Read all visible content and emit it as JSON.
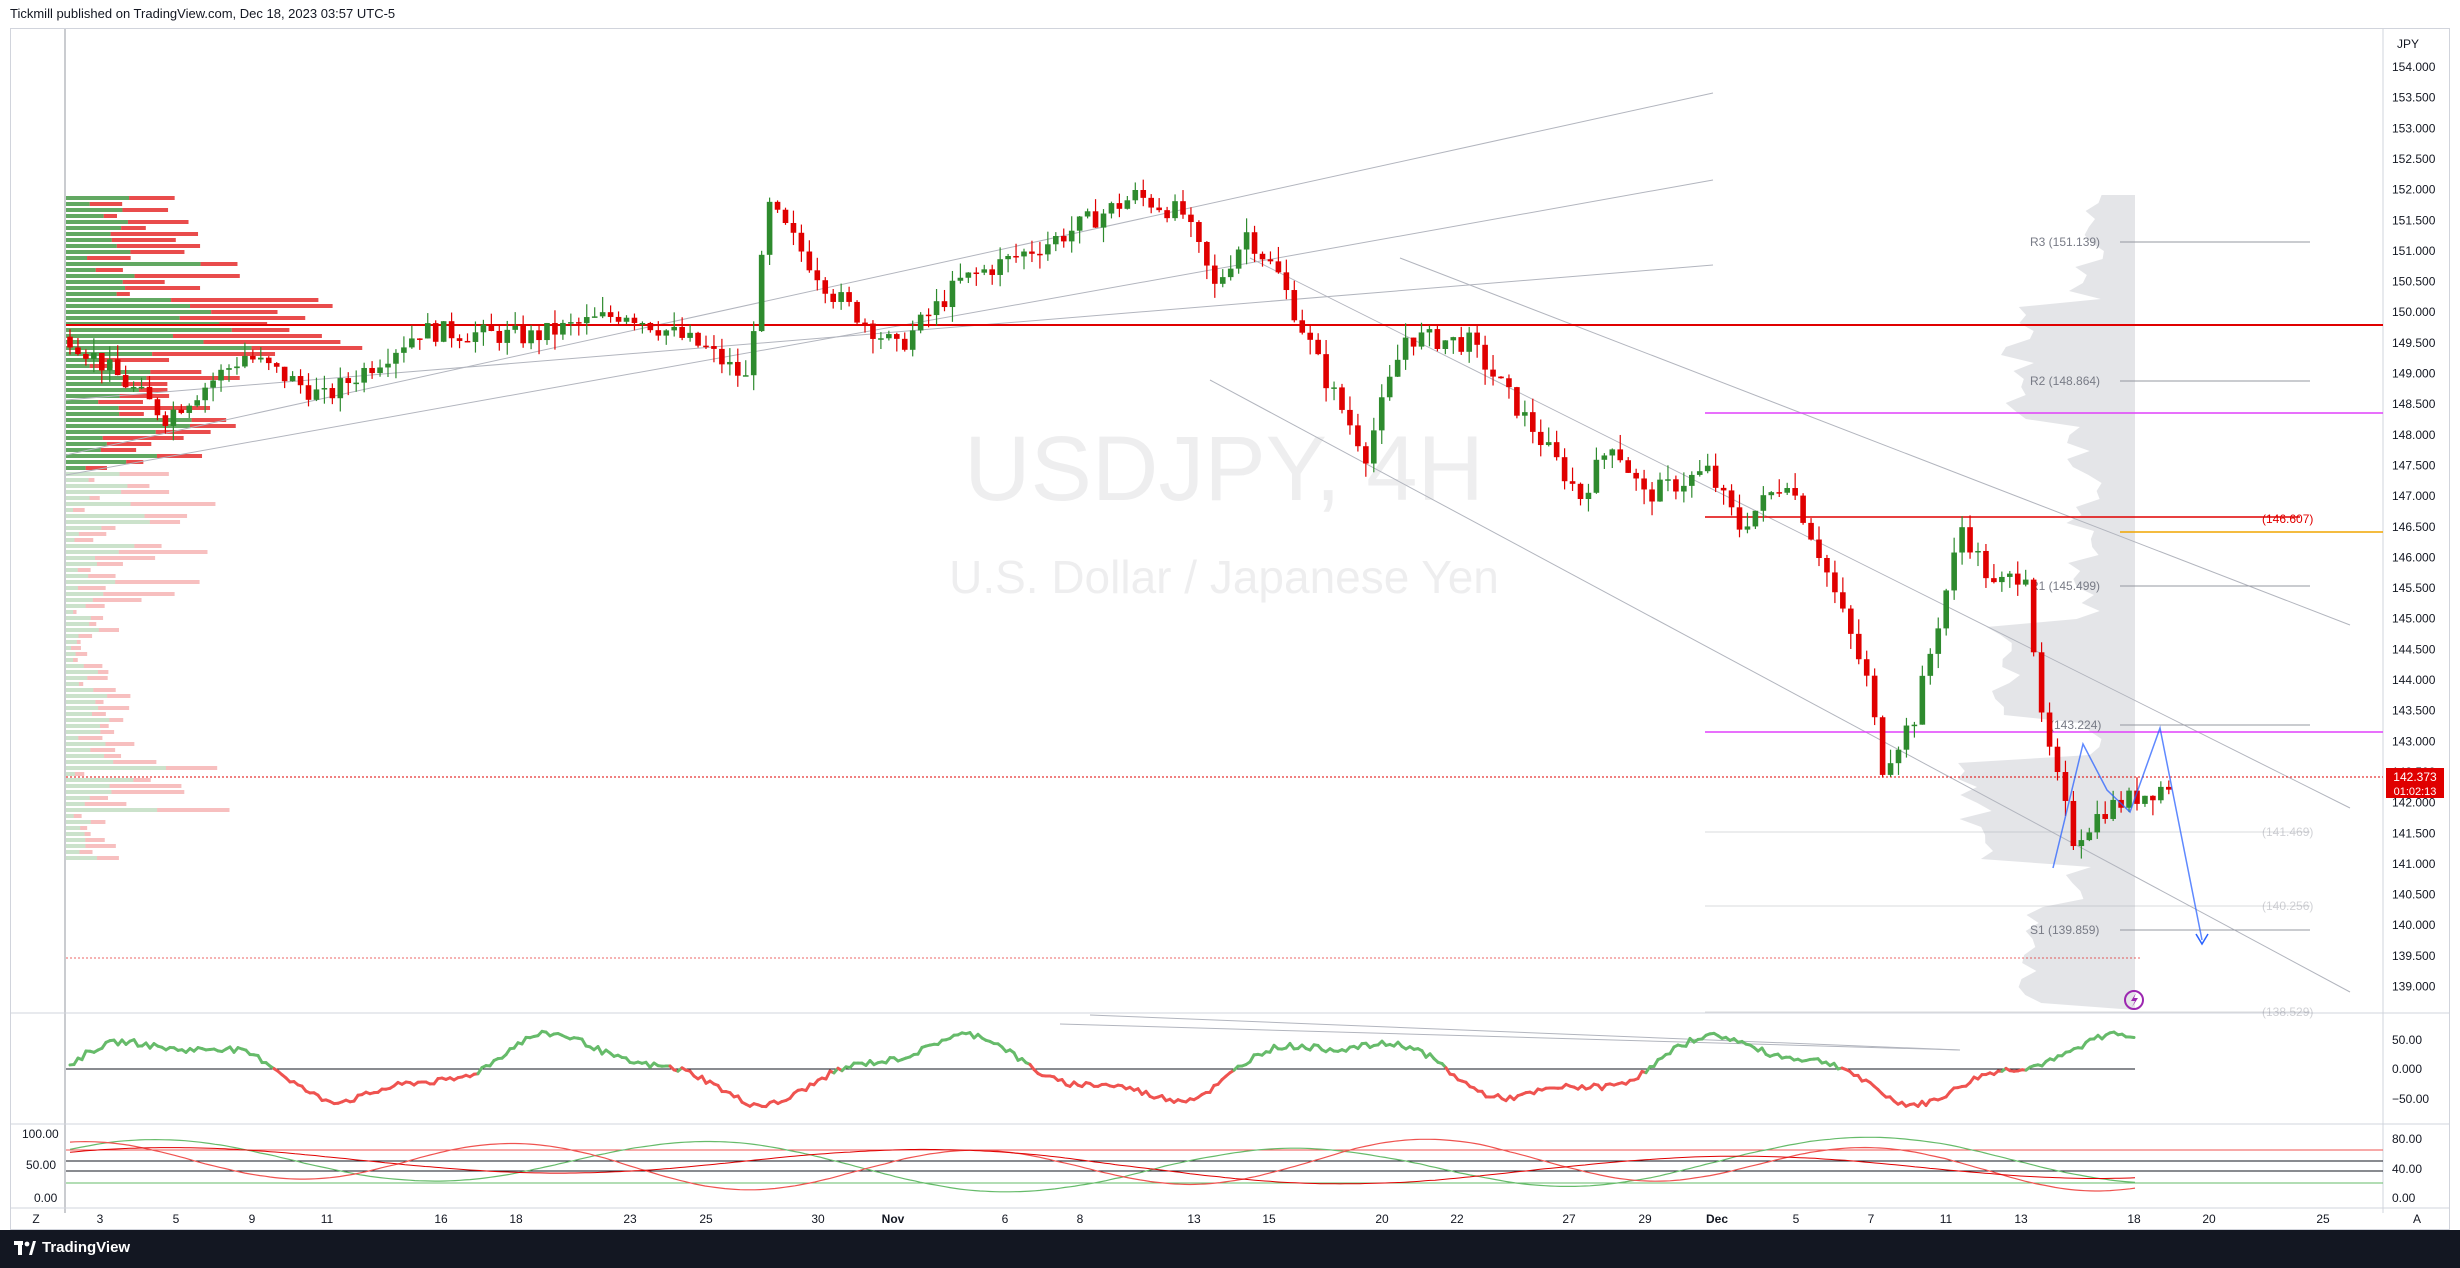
{
  "header": {
    "publisher_line": "Tickmill published on TradingView.com, Dec 18, 2023 03:57 UTC-5"
  },
  "footer": {
    "brand": "TradingView"
  },
  "colors": {
    "up": "#2e8b2e",
    "down": "#e00000",
    "accent": "#2962ff",
    "resistance": "#e00000",
    "pivot_magenta": "#e040fb",
    "orange": "#f0a500",
    "osc_up": "#66bb6a",
    "osc_down": "#ef5350"
  },
  "chart": {
    "currency": "JPY",
    "watermark_symbol": "USDJPY, 4H",
    "watermark_name": "U.S. Dollar / Japanese Yen",
    "price_axis": [
      "154.000",
      "153.500",
      "153.000",
      "152.500",
      "152.000",
      "151.500",
      "151.000",
      "150.500",
      "150.000",
      "149.500",
      "149.000",
      "148.500",
      "148.000",
      "147.500",
      "147.000",
      "146.500",
      "146.000",
      "145.500",
      "145.000",
      "144.500",
      "144.000",
      "143.500",
      "143.000",
      "142.500",
      "142.000",
      "141.500",
      "141.000",
      "140.500",
      "140.000",
      "139.500",
      "139.000"
    ],
    "last_price": "142.373",
    "countdown": "01:02:13",
    "time_axis": [
      "3",
      "5",
      "9",
      "11",
      "16",
      "18",
      "23",
      "25",
      "30",
      "Nov",
      "6",
      "8",
      "13",
      "15",
      "20",
      "22",
      "27",
      "29",
      "Dec",
      "5",
      "7",
      "11",
      "13",
      "18",
      "20",
      "25"
    ],
    "pivots": [
      {
        "label": "R3 (151.139)",
        "price": 151.139
      },
      {
        "label": "R2 (148.864)",
        "price": 148.864
      },
      {
        "label": "R1 (145.499)",
        "price": 145.499
      },
      {
        "label": "(143.224)",
        "price": 143.224
      },
      {
        "label": "S1 (139.859)",
        "price": 139.859
      },
      {
        "label": "(146.607)",
        "price": 146.607
      },
      {
        "label": "(141.469)",
        "price": 141.469
      },
      {
        "label": "(140.256)",
        "price": 140.256
      },
      {
        "label": "(138.529)",
        "price": 138.529
      }
    ],
    "osc1_axis": [
      "50.00",
      "0.000",
      "−50.00"
    ],
    "osc2_axis_right": [
      "80.00",
      "40.00",
      "0.00"
    ],
    "osc2_axis_left": [
      "100.00",
      "50.00",
      "0.00"
    ],
    "corner_left": "Z",
    "corner_right": "A"
  },
  "chart_data": {
    "type": "candlestick",
    "symbol": "USDJPY",
    "timeframe": "4H",
    "ylim": [
      138.5,
      154.4
    ],
    "segments": [
      [
        0,
        149.6
      ],
      [
        12,
        148.3
      ],
      [
        22,
        149.3
      ],
      [
        32,
        148.6
      ],
      [
        44,
        149.7
      ],
      [
        58,
        149.6
      ],
      [
        70,
        150.0
      ],
      [
        80,
        149.4
      ],
      [
        85,
        148.9
      ],
      [
        88,
        151.7
      ],
      [
        96,
        150.3
      ],
      [
        104,
        149.4
      ],
      [
        112,
        150.5
      ],
      [
        124,
        151.2
      ],
      [
        134,
        151.9
      ],
      [
        140,
        151.6
      ],
      [
        144,
        150.4
      ],
      [
        148,
        151.3
      ],
      [
        152,
        150.6
      ],
      [
        158,
        148.9
      ],
      [
        163,
        147.7
      ],
      [
        168,
        149.6
      ],
      [
        176,
        149.5
      ],
      [
        184,
        148.1
      ],
      [
        190,
        147.0
      ],
      [
        194,
        147.9
      ],
      [
        198,
        147.0
      ],
      [
        206,
        147.4
      ],
      [
        210,
        146.5
      ],
      [
        216,
        147.3
      ],
      [
        220,
        146.1
      ],
      [
        226,
        144.0
      ],
      [
        228,
        142.6
      ],
      [
        232,
        143.4
      ],
      [
        238,
        146.5
      ],
      [
        242,
        145.5
      ],
      [
        246,
        145.8
      ],
      [
        248,
        143.3
      ],
      [
        252,
        141.4
      ],
      [
        256,
        141.9
      ],
      [
        264,
        142.3
      ]
    ],
    "last_price": 142.373
  }
}
